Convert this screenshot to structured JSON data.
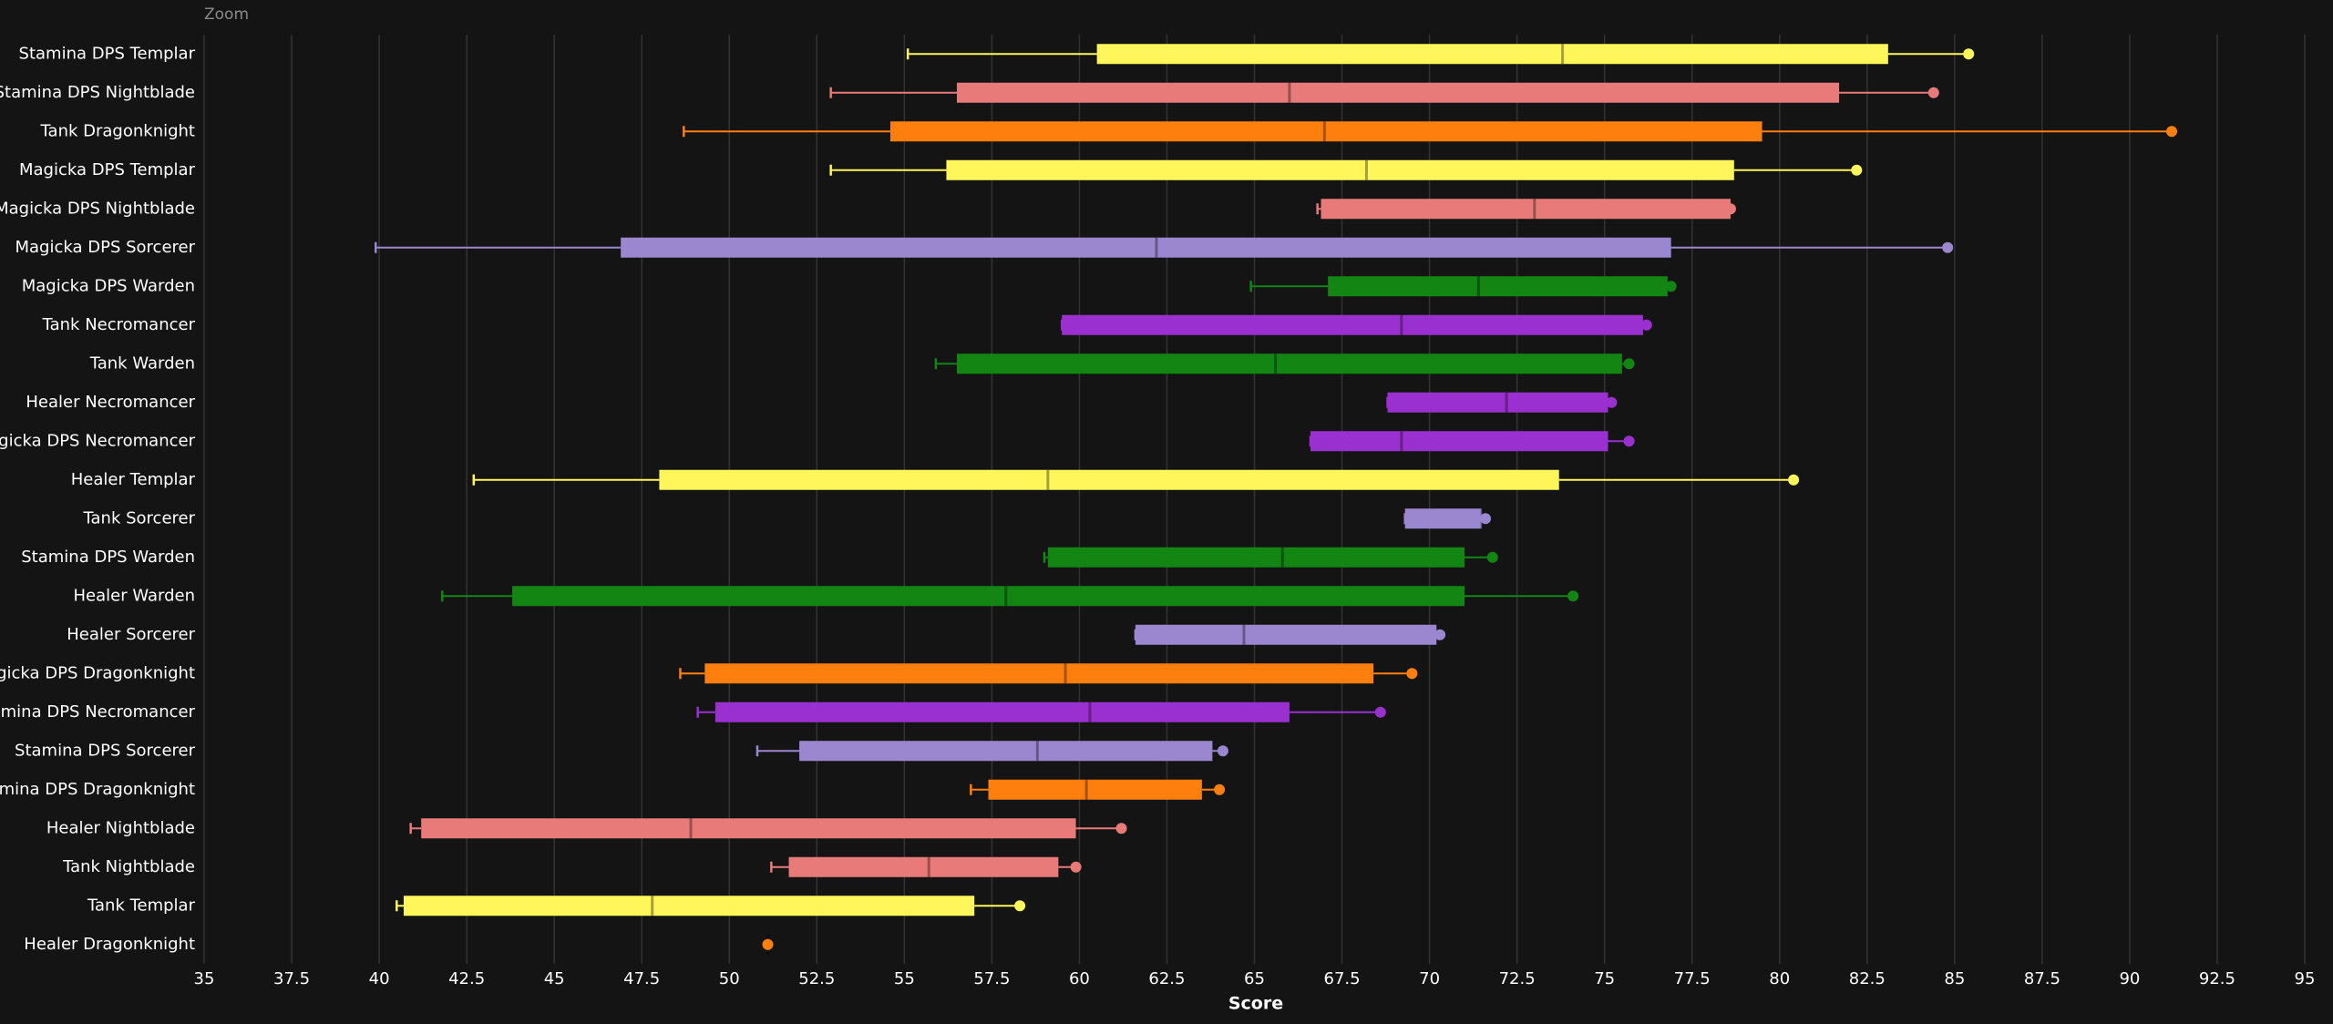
{
  "chart_data": {
    "type": "boxplot",
    "zoom_button": "Zoom",
    "xlabel": "Score",
    "xlim": [
      35,
      95
    ],
    "xticks": [
      35,
      37.5,
      40,
      42.5,
      45,
      47.5,
      50,
      52.5,
      55,
      57.5,
      60,
      62.5,
      65,
      67.5,
      70,
      72.5,
      75,
      77.5,
      80,
      82.5,
      85,
      87.5,
      90,
      92.5,
      95
    ],
    "grid": true,
    "boxes": [
      {
        "name": "Stamina DPS Templar",
        "color": "#fef65b",
        "whislo": 55.1,
        "q1": 60.5,
        "med": 73.8,
        "q3": 83.1,
        "whishi": 85.4
      },
      {
        "name": "Stamina DPS Nightblade",
        "color": "#e87a7a",
        "whislo": 52.9,
        "q1": 56.5,
        "med": 66.0,
        "q3": 81.7,
        "whishi": 84.4
      },
      {
        "name": "Tank Dragonknight",
        "color": "#ff7f0e",
        "whislo": 48.7,
        "q1": 54.6,
        "med": 67.0,
        "q3": 79.5,
        "whishi": 91.2
      },
      {
        "name": "Magicka DPS Templar",
        "color": "#fef65b",
        "whislo": 52.9,
        "q1": 56.2,
        "med": 68.2,
        "q3": 78.7,
        "whishi": 82.2
      },
      {
        "name": "Magicka DPS Nightblade",
        "color": "#e87a7a",
        "whislo": 66.8,
        "q1": 66.9,
        "med": 73.0,
        "q3": 78.6,
        "whishi": 78.6
      },
      {
        "name": "Magicka DPS Sorcerer",
        "color": "#9b87d0",
        "whislo": 39.9,
        "q1": 46.9,
        "med": 62.2,
        "q3": 76.9,
        "whishi": 84.8
      },
      {
        "name": "Magicka DPS Warden",
        "color": "#128512",
        "whislo": 64.9,
        "q1": 67.1,
        "med": 71.4,
        "q3": 76.8,
        "whishi": 76.9
      },
      {
        "name": "Tank Necromancer",
        "color": "#9b30d0",
        "whislo": 59.5,
        "q1": 59.5,
        "med": 69.2,
        "q3": 76.1,
        "whishi": 76.2
      },
      {
        "name": "Tank Warden",
        "color": "#128512",
        "whislo": 55.9,
        "q1": 56.5,
        "med": 65.6,
        "q3": 75.5,
        "whishi": 75.7
      },
      {
        "name": "Healer Necromancer",
        "color": "#9b30d0",
        "whislo": 68.8,
        "q1": 68.8,
        "med": 72.2,
        "q3": 75.1,
        "whishi": 75.2
      },
      {
        "name": "Magicka DPS Necromancer",
        "color": "#9b30d0",
        "whislo": 66.6,
        "q1": 66.6,
        "med": 69.2,
        "q3": 75.1,
        "whishi": 75.7
      },
      {
        "name": "Healer Templar",
        "color": "#fef65b",
        "whislo": 42.7,
        "q1": 48.0,
        "med": 59.1,
        "q3": 73.7,
        "whishi": 80.4
      },
      {
        "name": "Tank Sorcerer",
        "color": "#9b87d0",
        "whislo": 69.3,
        "q1": 69.3,
        "med": 71.5,
        "q3": 71.5,
        "whishi": 71.6
      },
      {
        "name": "Stamina DPS Warden",
        "color": "#128512",
        "whislo": 59.0,
        "q1": 59.1,
        "med": 65.8,
        "q3": 71.0,
        "whishi": 71.8
      },
      {
        "name": "Healer Warden",
        "color": "#128512",
        "whislo": 41.8,
        "q1": 43.8,
        "med": 57.9,
        "q3": 71.0,
        "whishi": 74.1
      },
      {
        "name": "Healer Sorcerer",
        "color": "#9b87d0",
        "whislo": 61.6,
        "q1": 61.6,
        "med": 64.7,
        "q3": 70.2,
        "whishi": 70.3
      },
      {
        "name": "Magicka DPS Dragonknight",
        "color": "#ff7f0e",
        "whislo": 48.6,
        "q1": 49.3,
        "med": 59.6,
        "q3": 68.4,
        "whishi": 69.5
      },
      {
        "name": "Stamina DPS Necromancer",
        "color": "#9b30d0",
        "whislo": 49.1,
        "q1": 49.6,
        "med": 60.3,
        "q3": 66.0,
        "whishi": 68.6
      },
      {
        "name": "Stamina DPS Sorcerer",
        "color": "#9b87d0",
        "whislo": 50.8,
        "q1": 52.0,
        "med": 58.8,
        "q3": 63.8,
        "whishi": 64.1
      },
      {
        "name": "Stamina DPS Dragonknight",
        "color": "#ff7f0e",
        "whislo": 56.9,
        "q1": 57.4,
        "med": 60.2,
        "q3": 63.5,
        "whishi": 64.0
      },
      {
        "name": "Healer Nightblade",
        "color": "#e87a7a",
        "whislo": 40.9,
        "q1": 41.2,
        "med": 48.9,
        "q3": 59.9,
        "whishi": 61.2
      },
      {
        "name": "Tank Nightblade",
        "color": "#e87a7a",
        "whislo": 51.2,
        "q1": 51.7,
        "med": 55.7,
        "q3": 59.4,
        "whishi": 59.9
      },
      {
        "name": "Tank Templar",
        "color": "#fef65b",
        "whislo": 40.5,
        "q1": 40.7,
        "med": 47.8,
        "q3": 57.0,
        "whishi": 58.3
      },
      {
        "name": "Healer Dragonknight",
        "color": "#ff7f0e",
        "whislo": 51.1,
        "q1": 51.1,
        "med": 51.1,
        "q3": 51.1,
        "whishi": 51.1
      }
    ]
  }
}
